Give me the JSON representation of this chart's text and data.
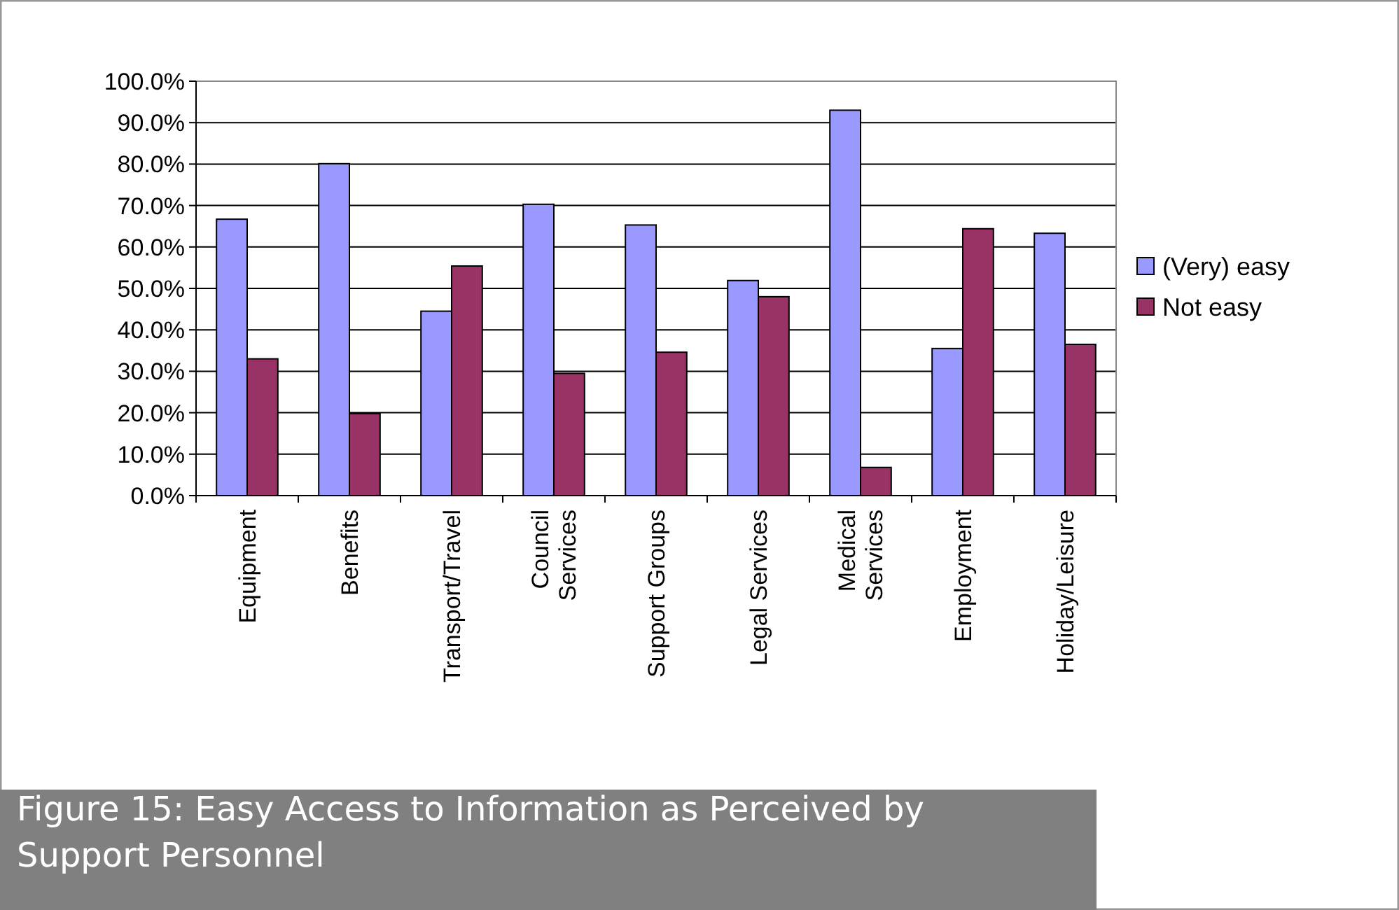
{
  "chart_data": {
    "type": "bar",
    "title": "Figure 15: Easy Access to Information as Perceived by Support Personnel",
    "categories": [
      "Equipment",
      "Benefits",
      "Transport/Travel",
      "Council Services",
      "Support Groups",
      "Legal Services",
      "Medical Services",
      "Employment",
      "Holiday/Leisure"
    ],
    "series": [
      {
        "name": "(Very) easy",
        "color": "#9999ff",
        "values": [
          66.7,
          80.1,
          44.5,
          70.3,
          65.3,
          51.9,
          93.0,
          35.5,
          63.3
        ]
      },
      {
        "name": "Not easy",
        "color": "#993366",
        "values": [
          33.0,
          19.8,
          55.4,
          29.5,
          34.6,
          48.0,
          6.8,
          64.4,
          36.5
        ]
      }
    ],
    "ylim": [
      0,
      100
    ],
    "yticks": [
      {
        "value": 0,
        "label": "0.0%"
      },
      {
        "value": 10,
        "label": "10.0%"
      },
      {
        "value": 20,
        "label": "20.0%"
      },
      {
        "value": 30,
        "label": "30.0%"
      },
      {
        "value": 40,
        "label": "40.0%"
      },
      {
        "value": 50,
        "label": "50.0%"
      },
      {
        "value": 60,
        "label": "60.0%"
      },
      {
        "value": 70,
        "label": "70.0%"
      },
      {
        "value": 80,
        "label": "80.0%"
      },
      {
        "value": 90,
        "label": "90.0%"
      },
      {
        "value": 100,
        "label": "100.0%"
      }
    ],
    "grid": "y",
    "legend": "right"
  }
}
